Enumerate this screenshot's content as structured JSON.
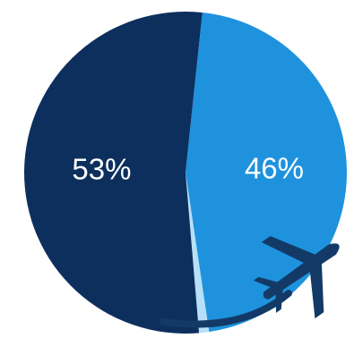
{
  "chart_data": {
    "type": "pie",
    "slices": [
      {
        "label": "53%",
        "value": 53,
        "color": "#0d2f5e"
      },
      {
        "label": "46%",
        "value": 46,
        "color": "#1e92dd"
      },
      {
        "label": "",
        "value": 1,
        "color": "#b6e0f7"
      }
    ],
    "title": "",
    "legend": "none"
  },
  "colors": {
    "dark_navy": "#0d2f5e",
    "bright_blue": "#1e92dd",
    "light_blue": "#b6e0f7",
    "airplane": "#133a66"
  },
  "icons": {
    "airplane": "airplane-icon"
  }
}
